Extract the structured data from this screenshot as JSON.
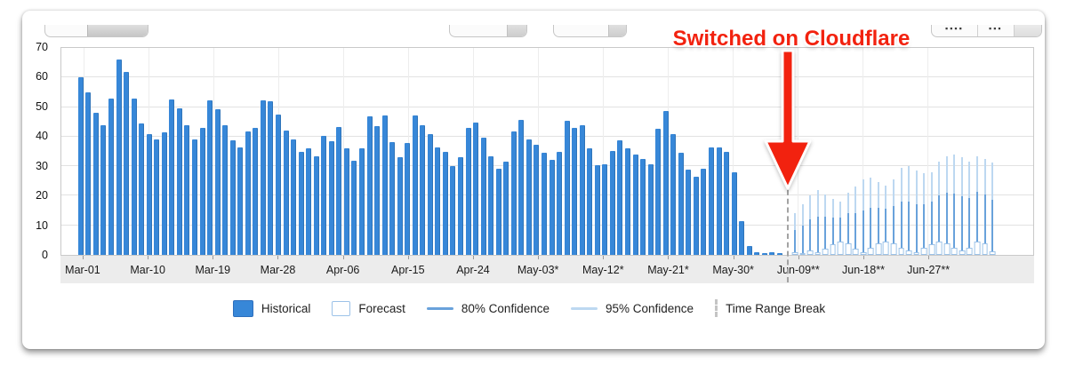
{
  "annotation": {
    "label": "Switched on Cloudflare",
    "color": "#f2220f"
  },
  "top_controls": {
    "dash_patterns": [
      "▪▪▪▪",
      "▪▪▪"
    ]
  },
  "chart_data": {
    "type": "bar",
    "title": "",
    "xlabel": "",
    "ylabel": "",
    "ylim": [
      0,
      70
    ],
    "yticks": [
      0,
      10,
      20,
      30,
      40,
      50,
      60,
      70
    ],
    "grid": true,
    "legend_position": "bottom",
    "x_tick_labels": [
      "Mar-01",
      "Mar-10",
      "Mar-19",
      "Mar-28",
      "Apr-06",
      "Apr-15",
      "Apr-24",
      "May-03*",
      "May-12*",
      "May-21*",
      "May-30*",
      "Jun-09**",
      "Jun-18**",
      "Jun-27**"
    ],
    "series": [
      {
        "name": "Historical",
        "type": "bar",
        "color": "#3787d8",
        "values": [
          60,
          55,
          48,
          44,
          53,
          66,
          62,
          53,
          44.5,
          41,
          39,
          41.5,
          52.5,
          49.5,
          44,
          39,
          43,
          52.4,
          49.4,
          44,
          38.9,
          36.5,
          41.9,
          43.1,
          52.4,
          52,
          47.5,
          42,
          39,
          35,
          36.2,
          33.5,
          40.4,
          38.5,
          43.2,
          36.2,
          32,
          36,
          47,
          43.5,
          47.2,
          38.2,
          33.2,
          38,
          47.2,
          43.8,
          40.8,
          36.5,
          35,
          30,
          33,
          43,
          44.7,
          39.7,
          33.5,
          29.2,
          31.5,
          41.7,
          45.7,
          39,
          37.2,
          34.7,
          32.3,
          35,
          45.5,
          43,
          43.8,
          36,
          30.2,
          30.5,
          35.2,
          38.7,
          36.2,
          34,
          32.5,
          30.5,
          42.7,
          48.8,
          40.8,
          34.5,
          28.8,
          26.5,
          29.2,
          36.4,
          36.4,
          35,
          28,
          11.5,
          3,
          1,
          0.5,
          1,
          0.5
        ]
      },
      {
        "name": "Forecast",
        "type": "bar",
        "color": "#ffffff",
        "border_color": "#9cc2e8",
        "values": [
          1,
          0.5,
          1.5,
          1,
          2,
          3.5,
          4.5,
          4,
          2,
          1,
          2.5,
          4,
          4.5,
          4,
          2.5,
          1.5,
          1,
          2.5,
          3.5,
          4.5,
          4,
          2.5,
          1.5,
          2.5,
          4.5,
          4,
          1.2
        ],
        "p80_upper": [
          8.5,
          10,
          12,
          13,
          13,
          12.5,
          12.5,
          14,
          14,
          15,
          16,
          16,
          15.5,
          16.5,
          18,
          18,
          17,
          17,
          18,
          20,
          21,
          20.8,
          19.8,
          19.3,
          21.3,
          20.5,
          18.7
        ],
        "p95_upper": [
          14,
          17,
          20,
          22,
          20.5,
          19,
          18,
          21,
          23,
          25.5,
          26,
          24.5,
          23.5,
          25.5,
          29.5,
          30,
          28.5,
          27.5,
          28,
          31.5,
          33.5,
          34,
          33,
          31.5,
          33.5,
          32.5,
          31.3
        ]
      }
    ],
    "confidence_colors": {
      "p80": "#69a2db",
      "p95": "#bdd8f1"
    },
    "break_line": {
      "after_label": "May-30*",
      "style": "dashed"
    },
    "legend_items": [
      {
        "type": "hist",
        "label": "Historical"
      },
      {
        "type": "fore",
        "label": "Forecast"
      },
      {
        "type": "line80",
        "label": "80% Confidence"
      },
      {
        "type": "line95",
        "label": "95% Confidence"
      },
      {
        "type": "break",
        "label": "Time Range Break"
      }
    ]
  }
}
